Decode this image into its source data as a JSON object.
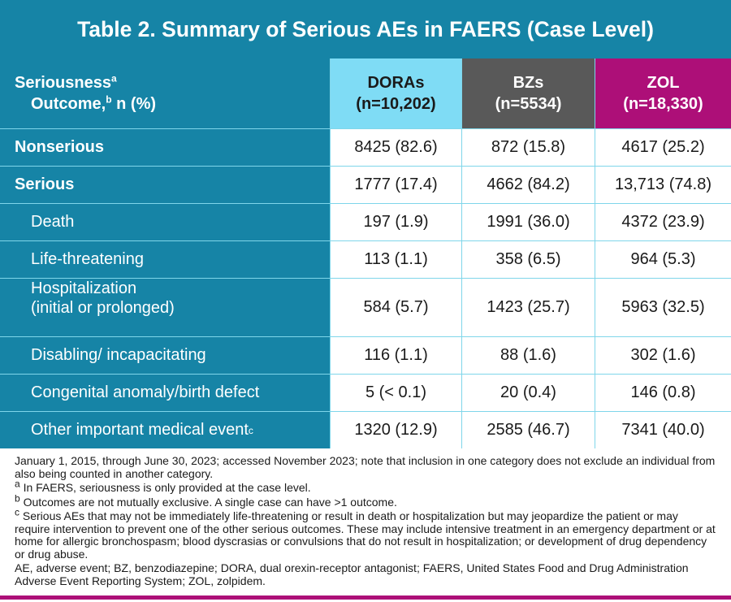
{
  "title": "Table 2. Summary of Serious AEs in FAERS (Case Level)",
  "header": {
    "label_line1": "Seriousness",
    "label_sup1": "a",
    "label_line2": "Outcome,",
    "label_sup2": "b",
    "label_line2_rest": " n (%)",
    "columns": [
      {
        "name": "DORAs",
        "n": "(n=10,202)"
      },
      {
        "name": "BZs",
        "n": "(n=5534)"
      },
      {
        "name": "ZOL",
        "n": "(n=18,330)"
      }
    ]
  },
  "rows": [
    {
      "label": "Nonserious",
      "values": [
        "8425 (82.6)",
        "872 (15.8)",
        "4617 (25.2)"
      ]
    },
    {
      "label": "Serious",
      "values": [
        "1777 (17.4)",
        "4662 (84.2)",
        "13,713 (74.8)"
      ]
    },
    {
      "label": "Death",
      "values": [
        "197 (1.9)",
        "1991 (36.0)",
        "4372 (23.9)"
      ]
    },
    {
      "label": "Life-threatening",
      "values": [
        "113 (1.1)",
        "358 (6.5)",
        "964 (5.3)"
      ]
    },
    {
      "label": "Hospitalization",
      "label2": "(initial or prolonged)",
      "values": [
        "584 (5.7)",
        "1423 (25.7)",
        "5963 (32.5)"
      ]
    },
    {
      "label": "Disabling/ incapacitating",
      "values": [
        "116 (1.1)",
        "88 (1.6)",
        "302 (1.6)"
      ]
    },
    {
      "label": "Congenital anomaly/birth defect",
      "values": [
        "5 (< 0.1)",
        "20 (0.4)",
        "146 (0.8)"
      ]
    },
    {
      "label": "Other important medical event",
      "label_sup": "c",
      "values": [
        "1320 (12.9)",
        "2585 (46.7)",
        "7341 (40.0)"
      ]
    }
  ],
  "footnotes": {
    "dates": "January 1, 2015, through June 30, 2023; accessed November 2023; note that inclusion in one category does not exclude an individual from also being counted in another category.",
    "a_mark": "a",
    "a": "In FAERS, seriousness is only provided at the case level.",
    "b_mark": "b",
    "b": "Outcomes are not mutually exclusive. A single case can have >1 outcome.",
    "c_mark": "c",
    "c": "Serious AEs that may not be immediately life-threatening or result in death or hospitalization but may jeopardize the patient or may require intervention to prevent one of the other serious outcomes. These may include intensive treatment in an emergency department or at home for allergic bronchospasm; blood dyscrasias or convulsions that do not result in hospitalization; or development of drug dependency or drug abuse.",
    "abbrev": "AE, adverse event; BZ, benzodiazepine; DORA, dual orexin-receptor antagonist; FAERS, United States Food and Drug Administration Adverse Event Reporting System; ZOL, zolpidem."
  },
  "colors": {
    "teal": "#1684a6",
    "light_blue": "#7fdcf5",
    "gray": "#595959",
    "magenta": "#ad0f78"
  }
}
